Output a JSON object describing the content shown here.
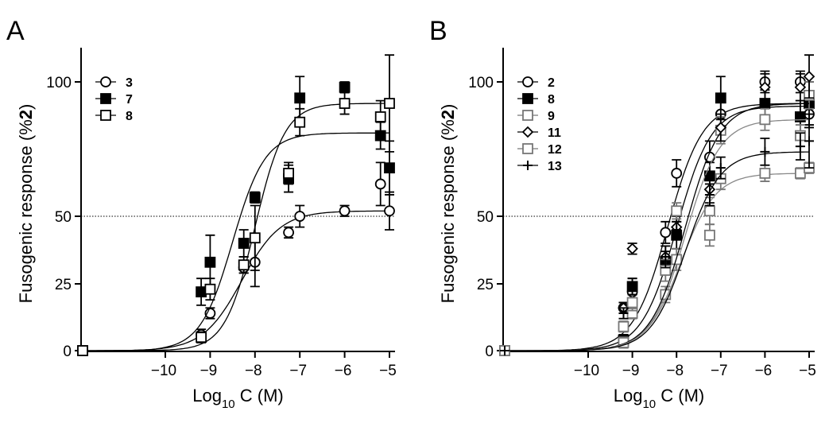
{
  "chart_data": [
    {
      "type": "scatter",
      "panel_label": "A",
      "title": "",
      "xlabel": "Log",
      "xlabel_sub": "10",
      "xlabel_tail": " C (M)",
      "ylabel": "Fusogenic response (%",
      "ylabel_bold": "2",
      "ylabel_tail": ")",
      "x_ticks": [
        -10,
        -9,
        -8,
        -7,
        -6,
        -5
      ],
      "x_tick_labels": [
        "−10",
        "−9",
        "−8",
        "−7",
        "−6",
        "−5"
      ],
      "y_ticks": [
        0,
        25,
        50,
        100
      ],
      "y_tick_labels": [
        "0",
        "25",
        "50",
        "100"
      ],
      "ylim": [
        0,
        115
      ],
      "reference_line_y": 50,
      "legend_position": "top-left",
      "series": [
        {
          "name": "3",
          "marker": "circle-open",
          "color": "#000000",
          "x": [
            -12.2,
            -9.2,
            -9.0,
            -8.25,
            -8.0,
            -7.25,
            -7.0,
            -6.0,
            -5.2,
            -5.0
          ],
          "y": [
            0,
            6,
            14,
            31,
            33,
            44,
            50,
            52,
            62,
            52
          ],
          "err": [
            0,
            2,
            2,
            2,
            9,
            2,
            4,
            2,
            8,
            7
          ],
          "fit": {
            "bottom": 0,
            "top": 52,
            "logEC50": -8.3,
            "hill": 1.0
          }
        },
        {
          "name": "7",
          "marker": "square-filled",
          "color": "#000000",
          "x": [
            -12.2,
            -9.2,
            -9.0,
            -8.25,
            -8.0,
            -7.25,
            -7.0,
            -6.0,
            -5.2,
            -5.0
          ],
          "y": [
            0,
            22,
            33,
            40,
            57,
            64,
            94,
            98,
            80,
            68
          ],
          "err": [
            0,
            5,
            10,
            5,
            2,
            5,
            8,
            2,
            5,
            10
          ],
          "fit": {
            "bottom": 0,
            "top": 81,
            "logEC50": -8.5,
            "hill": 1.2
          }
        },
        {
          "name": "8",
          "marker": "square-open",
          "color": "#000000",
          "x": [
            -12.2,
            -9.2,
            -9.0,
            -8.25,
            -8.0,
            -7.25,
            -7.0,
            -6.0,
            -5.2,
            -5.0
          ],
          "y": [
            0,
            5,
            23,
            32,
            42,
            66,
            85,
            92,
            87,
            92
          ],
          "err": [
            0,
            2,
            4,
            3,
            12,
            4,
            5,
            4,
            6,
            18
          ],
          "fit": {
            "bottom": 0,
            "top": 92,
            "logEC50": -8.0,
            "hill": 1.3
          }
        }
      ]
    },
    {
      "type": "scatter",
      "panel_label": "B",
      "title": "",
      "xlabel": "Log",
      "xlabel_sub": "10",
      "xlabel_tail": " C (M)",
      "ylabel": "Fusogenic response (%",
      "ylabel_bold": "2",
      "ylabel_tail": ")",
      "x_ticks": [
        -10,
        -9,
        -8,
        -7,
        -6,
        -5
      ],
      "x_tick_labels": [
        "−10",
        "−9",
        "−8",
        "−7",
        "−6",
        "−5"
      ],
      "y_ticks": [
        0,
        25,
        50,
        100
      ],
      "y_tick_labels": [
        "0",
        "25",
        "50",
        "100"
      ],
      "ylim": [
        0,
        115
      ],
      "reference_line_y": 50,
      "legend_position": "top-left",
      "series": [
        {
          "name": "2",
          "marker": "circle-open",
          "color": "#000000",
          "x": [
            -12.2,
            -9.2,
            -9.0,
            -8.25,
            -8.0,
            -7.25,
            -7.0,
            -6.0,
            -5.2,
            -5.0
          ],
          "y": [
            0,
            16,
            22,
            44,
            66,
            72,
            88,
            100,
            100,
            88
          ],
          "err": [
            0,
            2,
            3,
            4,
            5,
            6,
            5,
            4,
            4,
            5
          ],
          "fit": {
            "bottom": 0,
            "top": 92,
            "logEC50": -8.2,
            "hill": 1.1
          }
        },
        {
          "name": "8",
          "marker": "square-filled",
          "color": "#000000",
          "x": [
            -12.2,
            -9.2,
            -9.0,
            -8.25,
            -8.0,
            -7.25,
            -7.0,
            -6.0,
            -5.2,
            -5.0
          ],
          "y": [
            0,
            4,
            24,
            33,
            43,
            65,
            94,
            92,
            87,
            92
          ],
          "err": [
            0,
            2,
            3,
            4,
            5,
            5,
            8,
            5,
            6,
            8
          ],
          "fit": {
            "bottom": 0,
            "top": 91,
            "logEC50": -8.0,
            "hill": 1.1
          }
        },
        {
          "name": "9",
          "marker": "square-open",
          "color": "#777777",
          "x": [
            -12.2,
            -9.2,
            -9.0,
            -8.25,
            -8.0,
            -7.25,
            -7.0,
            -6.0,
            -5.2,
            -5.0
          ],
          "y": [
            0,
            3,
            14,
            21,
            34,
            52,
            82,
            86,
            80,
            95
          ],
          "err": [
            0,
            2,
            2,
            3,
            4,
            5,
            5,
            4,
            4,
            5
          ],
          "fit": {
            "bottom": 0,
            "top": 86,
            "logEC50": -7.8,
            "hill": 1.1
          }
        },
        {
          "name": "11",
          "marker": "diamond-open",
          "color": "#000000",
          "x": [
            -12.2,
            -9.2,
            -9.0,
            -8.25,
            -8.0,
            -7.25,
            -7.0,
            -6.0,
            -5.2,
            -5.0
          ],
          "y": [
            0,
            16,
            38,
            35,
            46,
            60,
            83,
            98,
            98,
            102
          ],
          "err": [
            0,
            2,
            2,
            4,
            4,
            5,
            5,
            5,
            5,
            8
          ],
          "fit": {
            "bottom": 0,
            "top": 92,
            "logEC50": -7.8,
            "hill": 1.1
          }
        },
        {
          "name": "12",
          "marker": "square-open",
          "color": "#777777",
          "x": [
            -12.2,
            -9.2,
            -9.0,
            -8.25,
            -8.0,
            -7.25,
            -7.0,
            -6.0,
            -5.2,
            -5.0
          ],
          "y": [
            0,
            9,
            18,
            30,
            52,
            43,
            64,
            66,
            66,
            68
          ],
          "err": [
            0,
            2,
            3,
            4,
            3,
            4,
            4,
            3,
            2,
            2
          ],
          "fit": {
            "bottom": 0,
            "top": 66,
            "logEC50": -7.9,
            "hill": 1.1
          }
        },
        {
          "name": "13",
          "marker": "plus",
          "color": "#000000",
          "x": [
            -12.2,
            -9.2,
            -9.0,
            -8.25,
            -8.0,
            -7.25,
            -7.0,
            -6.0,
            -5.2,
            -5.0
          ],
          "y": [
            0,
            14,
            24,
            35,
            45,
            58,
            68,
            74,
            76,
            78
          ],
          "err": [
            0,
            2,
            3,
            4,
            3,
            4,
            4,
            5,
            5,
            10
          ],
          "fit": {
            "bottom": 0,
            "top": 74,
            "logEC50": -7.8,
            "hill": 1.1
          }
        }
      ]
    }
  ]
}
